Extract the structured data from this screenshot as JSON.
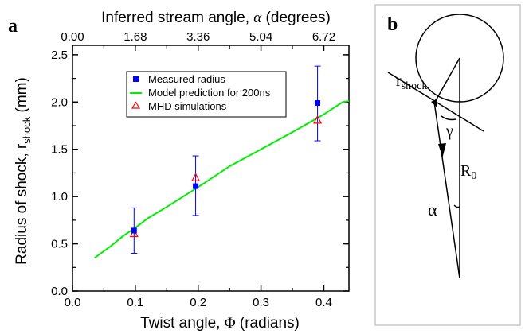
{
  "panel_a_label": "a",
  "panel_b_label": "b",
  "chart_data": {
    "type": "scatter",
    "xlabel": {
      "text": "Twist angle, ",
      "symbol": "Φ",
      "unit": " (radians)"
    },
    "ylabel": {
      "text": "Radius of shock, r",
      "sub": "shock",
      "unit": " (mm)"
    },
    "x2label": {
      "text": "Inferred stream angle, ",
      "symbol": "α",
      "unit": " (degrees)"
    },
    "xlim": [
      0.0,
      0.44
    ],
    "ylim": [
      0.0,
      2.6
    ],
    "xticks": [
      "0.0",
      "0.1",
      "0.2",
      "0.3",
      "0.4"
    ],
    "yticks": [
      "0.0",
      "0.5",
      "1.0",
      "1.5",
      "2.0",
      "2.5"
    ],
    "x2ticks": [
      "0.00",
      "1.68",
      "3.36",
      "5.04",
      "6.72"
    ],
    "legend_position": "top-center",
    "series": [
      {
        "name": "Measured radius",
        "kind": "points",
        "marker": "square",
        "color": "#0000ff",
        "x": [
          0.098,
          0.196,
          0.39
        ],
        "y": [
          0.64,
          1.11,
          1.99
        ],
        "err_low": [
          0.4,
          0.8,
          1.59
        ],
        "err_high": [
          0.88,
          1.43,
          2.38
        ]
      },
      {
        "name": "Model prediction for 200ns",
        "kind": "line",
        "color": "#00ee00",
        "x": [
          0.035,
          0.06,
          0.08,
          0.1,
          0.12,
          0.15,
          0.2,
          0.25,
          0.3,
          0.35,
          0.4,
          0.43,
          0.44
        ],
        "y": [
          0.35,
          0.47,
          0.58,
          0.67,
          0.77,
          0.89,
          1.1,
          1.32,
          1.5,
          1.68,
          1.87,
          2.0,
          2.01
        ]
      },
      {
        "name": "MHD simulations",
        "kind": "points",
        "marker": "triangle-open",
        "color": "#ff0000",
        "x": [
          0.098,
          0.196,
          0.39
        ],
        "y": [
          0.61,
          1.2,
          1.81
        ]
      }
    ]
  },
  "diagram_b": {
    "r_label": "r",
    "r_sub": "shock",
    "gamma_label": "γ",
    "R_label": "R",
    "R_sub": "0",
    "alpha_label": "α"
  }
}
